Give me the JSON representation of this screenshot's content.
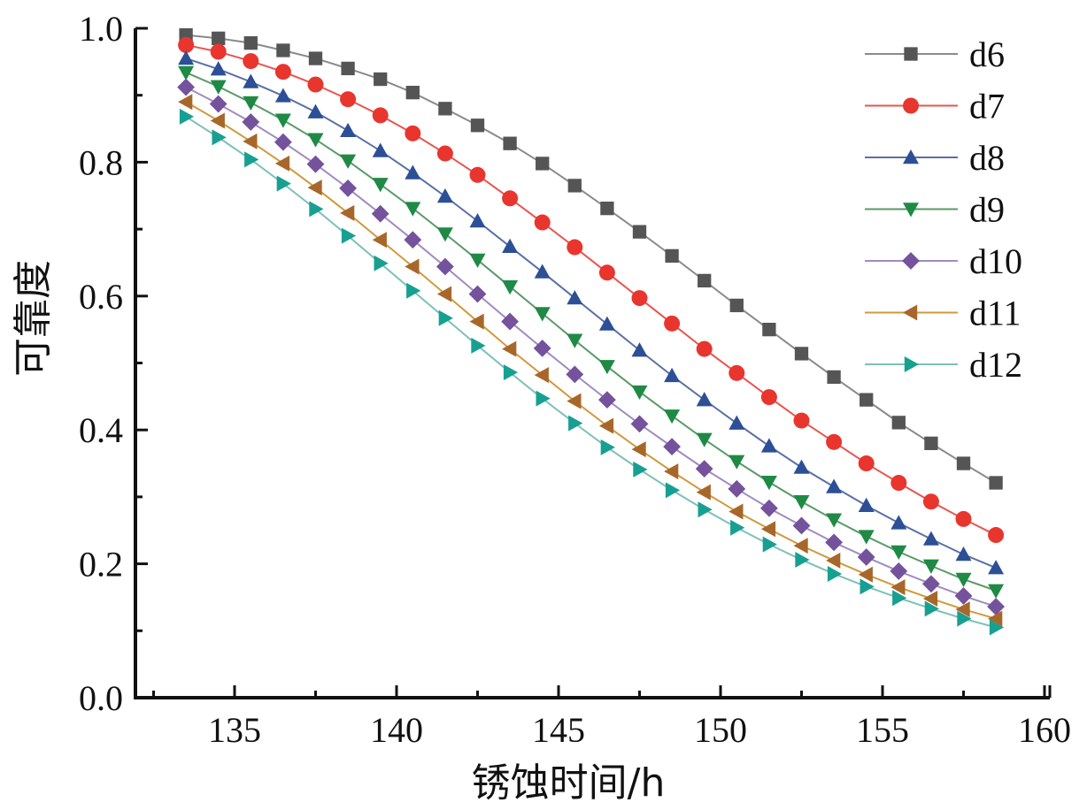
{
  "chart_data": {
    "type": "line",
    "title": "",
    "xlabel": "锈蚀时间/h",
    "ylabel": "可靠度",
    "xlim": [
      132,
      160
    ],
    "ylim": [
      0.0,
      1.0
    ],
    "xticks": [
      135,
      140,
      145,
      150,
      155,
      160
    ],
    "xtick_labels": [
      "135",
      "140",
      "145",
      "150",
      "155",
      "160"
    ],
    "yticks": [
      0.0,
      0.2,
      0.4,
      0.6,
      0.8,
      1.0
    ],
    "ytick_labels": [
      "0.0",
      "0.2",
      "0.4",
      "0.6",
      "0.8",
      "1.0"
    ],
    "grid": false,
    "legend_position": "top-right",
    "x": [
      133.5,
      134.5,
      135.5,
      136.5,
      137.5,
      138.5,
      139.5,
      140.5,
      141.5,
      142.5,
      143.5,
      144.5,
      145.5,
      146.5,
      147.5,
      148.5,
      149.5,
      150.5,
      151.5,
      152.5,
      153.5,
      154.5,
      155.5,
      156.5,
      157.5,
      158.5
    ],
    "series": [
      {
        "name": "d6",
        "marker": "square",
        "color": "#555555",
        "line_color": "#8a8a8a",
        "values": [
          0.99,
          0.985,
          0.978,
          0.967,
          0.955,
          0.94,
          0.924,
          0.904,
          0.88,
          0.855,
          0.828,
          0.798,
          0.765,
          0.731,
          0.696,
          0.66,
          0.623,
          0.586,
          0.55,
          0.514,
          0.479,
          0.445,
          0.411,
          0.38,
          0.35,
          0.321
        ]
      },
      {
        "name": "d7",
        "marker": "circle",
        "color": "#e8352e",
        "line_color": "#e8554e",
        "values": [
          0.975,
          0.965,
          0.951,
          0.935,
          0.916,
          0.894,
          0.87,
          0.843,
          0.813,
          0.781,
          0.746,
          0.71,
          0.673,
          0.635,
          0.597,
          0.559,
          0.521,
          0.485,
          0.449,
          0.414,
          0.382,
          0.35,
          0.321,
          0.293,
          0.267,
          0.243
        ]
      },
      {
        "name": "d8",
        "marker": "triangle-up",
        "color": "#2c4f96",
        "line_color": "#5a6fa8",
        "values": [
          0.955,
          0.939,
          0.92,
          0.899,
          0.875,
          0.847,
          0.817,
          0.784,
          0.749,
          0.712,
          0.674,
          0.636,
          0.597,
          0.558,
          0.519,
          0.481,
          0.445,
          0.41,
          0.376,
          0.344,
          0.315,
          0.287,
          0.261,
          0.237,
          0.214,
          0.194
        ]
      },
      {
        "name": "d9",
        "marker": "triangle-down",
        "color": "#1f8a45",
        "line_color": "#5a9a68",
        "values": [
          0.934,
          0.913,
          0.889,
          0.863,
          0.834,
          0.802,
          0.767,
          0.731,
          0.693,
          0.654,
          0.614,
          0.574,
          0.534,
          0.495,
          0.457,
          0.421,
          0.386,
          0.353,
          0.322,
          0.293,
          0.266,
          0.241,
          0.218,
          0.197,
          0.177,
          0.16
        ]
      },
      {
        "name": "d10",
        "marker": "diamond",
        "color": "#74529c",
        "line_color": "#a08cc0",
        "values": [
          0.912,
          0.887,
          0.86,
          0.83,
          0.797,
          0.761,
          0.723,
          0.684,
          0.644,
          0.603,
          0.562,
          0.522,
          0.483,
          0.445,
          0.409,
          0.375,
          0.342,
          0.312,
          0.283,
          0.257,
          0.232,
          0.21,
          0.189,
          0.17,
          0.152,
          0.136
        ]
      },
      {
        "name": "d11",
        "marker": "triangle-left",
        "color": "#a8672a",
        "line_color": "#d09a3c",
        "values": [
          0.89,
          0.862,
          0.831,
          0.798,
          0.762,
          0.724,
          0.684,
          0.644,
          0.603,
          0.562,
          0.521,
          0.482,
          0.443,
          0.406,
          0.371,
          0.338,
          0.307,
          0.278,
          0.252,
          0.227,
          0.205,
          0.184,
          0.165,
          0.148,
          0.132,
          0.118
        ]
      },
      {
        "name": "d12",
        "marker": "triangle-right",
        "color": "#17a092",
        "line_color": "#7ec0b8",
        "values": [
          0.868,
          0.837,
          0.804,
          0.768,
          0.73,
          0.69,
          0.649,
          0.608,
          0.567,
          0.526,
          0.486,
          0.447,
          0.41,
          0.374,
          0.341,
          0.31,
          0.281,
          0.254,
          0.229,
          0.206,
          0.185,
          0.166,
          0.149,
          0.133,
          0.118,
          0.105
        ]
      }
    ]
  }
}
